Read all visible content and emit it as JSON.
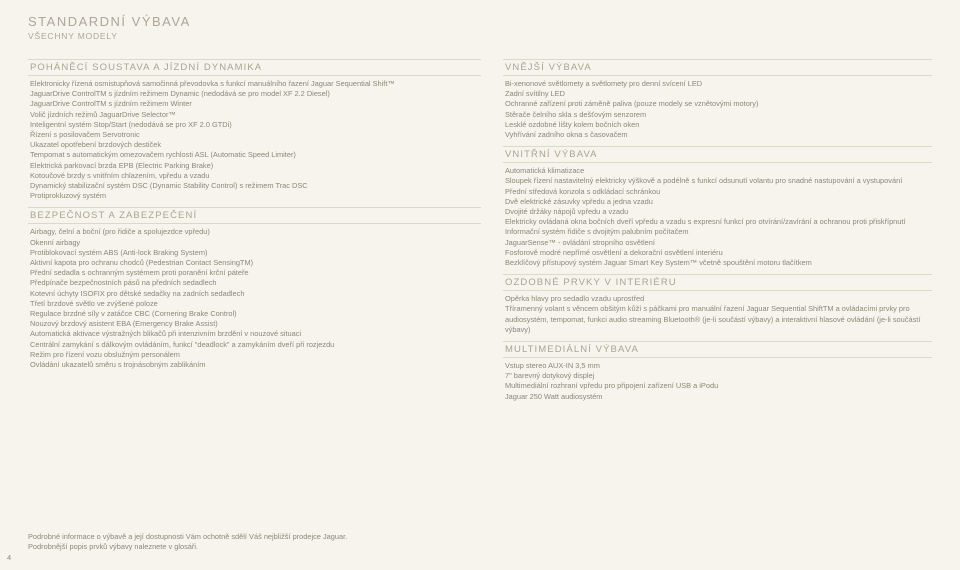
{
  "pageTitle": "STANDARDNÍ VÝBAVA",
  "pageSub": "VŠECHNY MODELY",
  "pageNumber": "4",
  "footnote1": "Podrobné informace o výbavě a její dostupnosti Vám ochotně sdělí Váš nejbližší prodejce Jaguar.",
  "footnote2": "Podrobnější popis prvků výbavy naleznete v glosáři.",
  "left": [
    {
      "title": "POHÁNĚCÍ SOUSTAVA A JÍZDNÍ DYNAMIKA",
      "items": [
        "Elektronicky řízená osmistupňová samočinná převodovka s funkcí manuálního řazení Jaguar Sequential Shift™",
        "JaguarDrive ControlTM s jízdním režimem Dynamic (nedodává se pro model XF 2.2 Diesel)",
        "JaguarDrive ControlTM s jízdním režimem Winter",
        "Volič jízdních režimů JaguarDrive Selector™",
        "Inteligentní systém Stop/Start (nedodává se pro XF 2.0 GTDi)",
        "Řízení s posilovačem Servotronic",
        "Ukazatel opotřebení brzdových destiček",
        "Tempomat s automatickým omezovačem rychlosti ASL (Automatic Speed Limiter)",
        "Elektrická parkovací brzda EPB (Electric Parking Brake)",
        "Kotoučové brzdy s vnitřním chlazením, vpředu a vzadu",
        "Dynamický stabilizační systém DSC (Dynamic Stability Control) s režimem Trac DSC",
        "Protiprokluzový systém"
      ]
    },
    {
      "title": "BEZPEČNOST A ZABEZPEČENÍ",
      "items": [
        "Airbagy, čelní a boční (pro řidiče a spolujezdce vpředu)",
        "Okenní airbagy",
        "Protiblokovací systém ABS (Anti-lock Braking System)",
        "Aktivní kapota pro ochranu chodců (Pedestrian Contact SensingTM)",
        "Přední sedadla s ochranným systémem proti poranění krční páteře",
        "Předpínače bezpečnostních pásů na předních sedadlech",
        "Kotevní úchyty ISOFIX pro dětské sedačky na zadních sedadlech",
        "Třetí brzdové světlo ve zvýšené poloze",
        "Regulace brzdné síly v zatáčce CBC (Cornering Brake Control)",
        "Nouzový brzdový asistent EBA (Emergency Brake Assist)",
        "Automatická aktivace výstražných blikačů při intenzivním brzdění v nouzové situaci",
        "Centrální zamykání s dálkovým ovládáním, funkcí \"deadlock\" a zamykáním dveří při rozjezdu",
        "Režim pro řízení vozu obslužným personálem",
        "Ovládání ukazatelů směru s trojnásobným zablikáním"
      ]
    }
  ],
  "right": [
    {
      "title": "VNĚJŠÍ VÝBAVA",
      "items": [
        "Bi-xenonové světlomety a světlomety pro denní svícení LED",
        "Zadní svítilny LED",
        "Ochranné zařízení proti záměně paliva (pouze modely se vznětovými motory)",
        "Stěrače čelního skla s dešťovým senzorem",
        "Lesklé ozdobné lišty kolem bočních oken",
        "Vyhřívání zadního okna s časovačem"
      ]
    },
    {
      "title": "VNITŘNÍ VÝBAVA",
      "items": [
        "Automatická klimatizace",
        "Sloupek řízení nastavitelný elektricky výškově a podélně s funkcí odsunutí volantu pro snadné nastupování a vystupování",
        "Přední středová konzola s odkládací schránkou",
        "Dvě elektrické zásuvky vpředu a jedna vzadu",
        "Dvojité držáky nápojů vpředu a vzadu",
        "Elektricky ovládaná okna bočních dveří vpředu a vzadu s expresní funkcí pro otvírání/zavírání a ochranou proti přiskřípnutí",
        "Informační systém řidiče s dvojitým palubním počítačem",
        "JaguarSense™ - ovládání stropního osvětlení",
        "Fosforově modré nepřímé osvětlení a dekorační osvětlení interiéru",
        "Bezklíčový přístupový systém Jaguar Smart Key System™ včetně spouštění motoru tlačítkem"
      ]
    },
    {
      "title": "OZDOBNÉ PRVKY V INTERIÉRU",
      "items": [
        "Opěrka hlavy pro sedadlo vzadu uprostřed",
        "Tříramenný volant s věncem obšitým kůží s páčkami pro manuální řazení Jaguar Sequential ShiftTM a ovládacími prvky pro audiosystém, tempomat, funkci audio streaming Bluetooth® (je-li součástí výbavy) a interaktivní hlasové ovládání (je-li součástí výbavy)"
      ]
    },
    {
      "title": "MULTIMEDIÁLNÍ VÝBAVA",
      "items": [
        "Vstup stereo AUX-IN 3,5 mm",
        "7\" barevný dotykový displej",
        "Multimediální rozhraní vpředu pro připojení zařízení USB a iPodu",
        "Jaguar 250 Watt audiosystém"
      ]
    }
  ]
}
